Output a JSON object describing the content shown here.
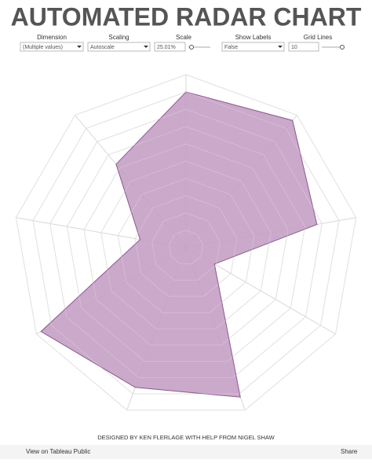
{
  "chart_data": {
    "type": "radar",
    "title": "AUTOMATED RADAR CHART",
    "values": [
      90,
      96,
      77,
      19,
      92,
      86,
      97,
      27,
      63
    ],
    "rlim": [
      0,
      100
    ],
    "rticks": [
      10,
      20,
      30,
      40,
      50,
      60,
      70,
      80,
      90,
      100
    ],
    "color": "#c4a0c4",
    "grid": true
  },
  "controls": [
    {
      "label": "Dimension",
      "value": "(Multiple values)"
    },
    {
      "label": "Scaling",
      "value": "Autoscale"
    },
    {
      "label": "Scale",
      "value": "25.01%"
    },
    {
      "label": "Show Labels",
      "value": "False"
    },
    {
      "label": "Grid Lines",
      "value": "10"
    }
  ],
  "footer": {
    "credit": "DESIGNED BY KEN FLERLAGE WITH HELP FROM NIGEL SHAW",
    "view": "View on Tableau Public",
    "share": "Share"
  }
}
